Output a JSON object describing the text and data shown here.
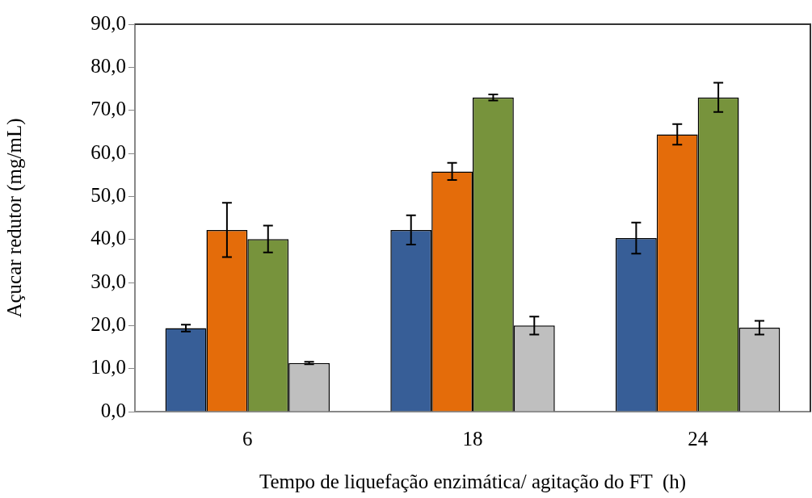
{
  "chart_data": {
    "type": "bar",
    "xlabel": "Tempo de liquefação enzimática/ agitação do FT  (h)",
    "ylabel": "Açucar redutor (mg/mL)",
    "categories": [
      "6",
      "18",
      "24"
    ],
    "series": [
      {
        "color": "#375e97",
        "values": [
          19.4,
          42.2,
          40.3
        ],
        "errors": [
          0.8,
          3.4,
          3.6
        ]
      },
      {
        "color": "#e46c0a",
        "values": [
          42.2,
          55.8,
          64.4
        ],
        "errors": [
          6.3,
          2.0,
          2.4
        ]
      },
      {
        "color": "#77933c",
        "values": [
          40.1,
          73.0,
          73.0
        ],
        "errors": [
          3.1,
          0.7,
          3.4
        ]
      },
      {
        "color": "#bfbfbf",
        "values": [
          11.3,
          20.0,
          19.5
        ],
        "errors": [
          0.3,
          2.1,
          1.6
        ]
      }
    ],
    "ylim": [
      0,
      90
    ],
    "yticks": [
      {
        "value": 0,
        "label": "0,0"
      },
      {
        "value": 10,
        "label": "10,0"
      },
      {
        "value": 20,
        "label": "20,0"
      },
      {
        "value": 30,
        "label": "30,0"
      },
      {
        "value": 40,
        "label": "40,0"
      },
      {
        "value": 50,
        "label": "50,0"
      },
      {
        "value": 60,
        "label": "60,0"
      },
      {
        "value": 70,
        "label": "70,0"
      },
      {
        "value": 80,
        "label": "80,0"
      },
      {
        "value": 90,
        "label": "90,0"
      }
    ],
    "legend": false
  }
}
